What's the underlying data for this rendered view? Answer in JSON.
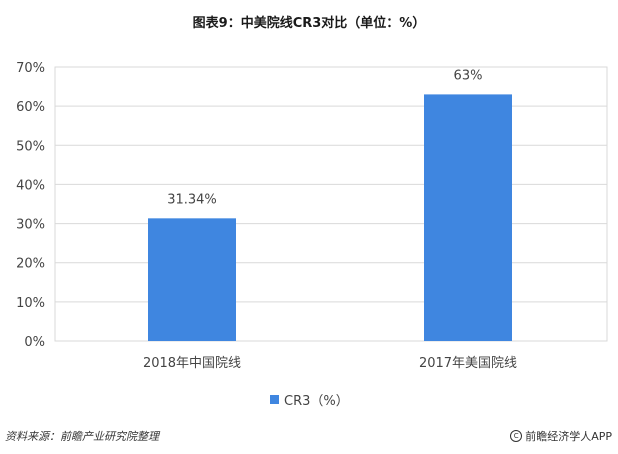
{
  "title": "图表9：中美院线CR3对比（单位：%）",
  "chart_data": {
    "type": "bar",
    "categories": [
      "2018年中国院线",
      "2017年美国院线"
    ],
    "series": [
      {
        "name": "CR3（%）",
        "values": [
          31.34,
          63
        ]
      }
    ],
    "data_labels": [
      "31.34%",
      "63%"
    ],
    "ylim": [
      0,
      70
    ],
    "yticks": [
      0,
      10,
      20,
      30,
      40,
      50,
      60,
      70
    ],
    "ytick_labels": [
      "0%",
      "10%",
      "20%",
      "30%",
      "40%",
      "50%",
      "60%",
      "70%"
    ],
    "grid": true,
    "legend_position": "bottom",
    "bar_color": "#3f86e0"
  },
  "footer": {
    "source": "资料来源：前瞻产业研究院整理",
    "copyright": "前瞻经济学人APP"
  }
}
